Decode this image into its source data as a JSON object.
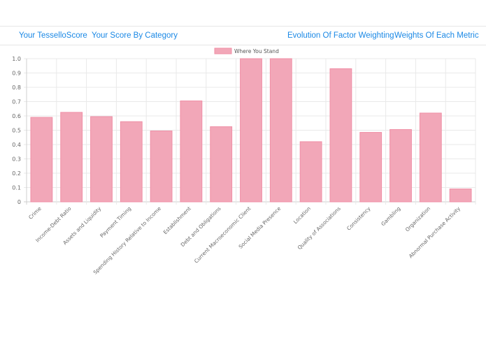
{
  "nav": {
    "tab1": "Your TesselloScore",
    "tab2": "Your Score By Category",
    "tab3": "Evolution Of Factor Weighting",
    "tab4": "Weights Of Each Metric"
  },
  "colors": {
    "accent": "#1a88e5",
    "bar_fill": "#f2a7b8",
    "bar_stroke": "#f08fa6",
    "grid": "#e9e9e9"
  },
  "chart_data": {
    "type": "bar",
    "categories": [
      "Crime",
      "Income-Debt Ratio",
      "Assets and Liquidity",
      "Payment Timing",
      "Spending History Relative to Income",
      "Establishment",
      "Debt and Obligations",
      "Current Macroeconomic Client",
      "Social Media Presence",
      "Location",
      "Quality of Associations",
      "Consistency",
      "Gambling",
      "Organization",
      "Abnormal Purchase Activity"
    ],
    "series": [
      {
        "name": "Where You Stand",
        "values": [
          0.59,
          0.625,
          0.595,
          0.56,
          0.495,
          0.705,
          0.525,
          1.0,
          1.0,
          0.42,
          0.93,
          0.485,
          0.505,
          0.62,
          0.09
        ]
      }
    ],
    "y_ticks": [
      "0",
      "0.1",
      "0.2",
      "0.3",
      "0.4",
      "0.5",
      "0.6",
      "0.7",
      "0.8",
      "0.9",
      "1.0"
    ],
    "ylim": [
      0,
      1.0
    ],
    "grid": true,
    "legend_position": "top-center",
    "title": "",
    "xlabel": "",
    "ylabel": ""
  }
}
